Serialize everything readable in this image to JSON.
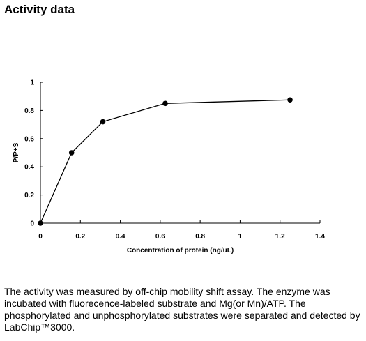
{
  "page_title": "Activity data",
  "description": "The activity was measured by off-chip mobility shift assay. The enzyme was incubated with fluorecence-labeled  substrate and Mg(or Mn)/ATP. The phosphorylated and unphosphorylated substrates were separated and detected by LabChip™3000.",
  "chart_data": {
    "type": "line",
    "title": "",
    "xlabel": "Concentration of protein (ng/uL)",
    "ylabel": "P/P+S",
    "xlim": [
      0,
      1.4
    ],
    "ylim": [
      0,
      1
    ],
    "x_ticks": [
      "0",
      "0.2",
      "0.4",
      "0.6",
      "0.8",
      "1",
      "1.2",
      "1.4"
    ],
    "y_ticks": [
      "0",
      "0.2",
      "0.4",
      "0.6",
      "0.8",
      "1"
    ],
    "grid": false,
    "legend": "none",
    "series": [
      {
        "x": [
          0,
          0.156,
          0.3125,
          0.625,
          1.25
        ],
        "y": [
          0,
          0.5,
          0.72,
          0.85,
          0.875
        ],
        "color": "#000000"
      }
    ]
  }
}
